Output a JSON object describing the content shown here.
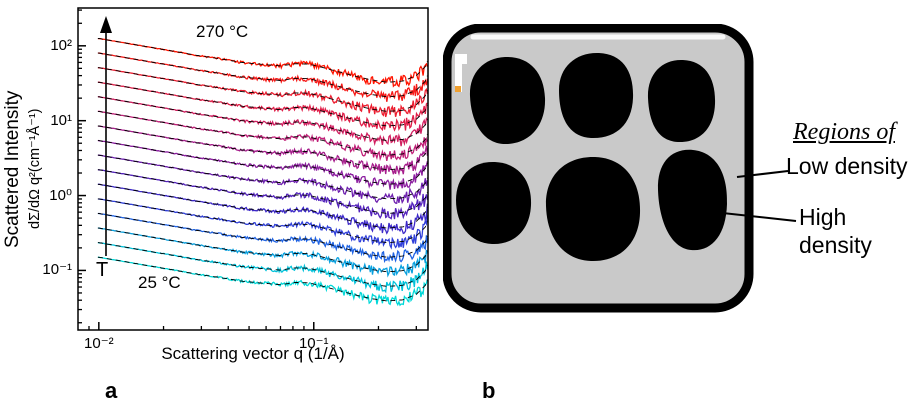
{
  "figure": {
    "panel_a_label": "a",
    "panel_b_label": "b"
  },
  "chart_data": {
    "type": "line",
    "title": "",
    "xlabel": "Scattering vector q (1/Å)",
    "ylabel_line1": "Scattered Intensity",
    "ylabel_line2": "dΣ/dΩ q²(cm⁻¹Å⁻¹)",
    "xscale": "log",
    "yscale": "log",
    "xlim": [
      0.008,
      0.34
    ],
    "ylim": [
      0.016,
      320
    ],
    "grid": false,
    "x_ticks": [
      {
        "value": 0.01,
        "label": "10⁻²"
      },
      {
        "value": 0.1,
        "label": "10⁻¹"
      }
    ],
    "y_ticks": [
      {
        "value": 0.1,
        "label": "10⁻¹"
      },
      {
        "value": 1,
        "label": "10⁰"
      },
      {
        "value": 10,
        "label": "10¹"
      },
      {
        "value": 100,
        "label": "10²"
      }
    ],
    "annotations": {
      "temp_top": "270 °C",
      "temp_bottom": "25 °C",
      "arrow_label": "T"
    },
    "series": {
      "count": 16,
      "temperature_range_c": [
        25,
        270
      ],
      "base_intensity_at_q_0_01": 0.15,
      "step_ratio": 1.566,
      "color_stops": [
        "#00d8d8",
        "#00b4dc",
        "#2850e6",
        "#3c28c8",
        "#6420b4",
        "#961e9b",
        "#c02078",
        "#dc1e50",
        "#f01e28",
        "#ff1400"
      ],
      "fit_overlay": "dashed-black"
    },
    "curve_shape": {
      "q": [
        0.01,
        0.013,
        0.017,
        0.022,
        0.028,
        0.036,
        0.046,
        0.058,
        0.07,
        0.082,
        0.095,
        0.11,
        0.13,
        0.155,
        0.185,
        0.22,
        0.26,
        0.3,
        0.33,
        0.34
      ],
      "relative_intensity": [
        1.0,
        0.88,
        0.77,
        0.68,
        0.6,
        0.54,
        0.48,
        0.45,
        0.43,
        0.46,
        0.455,
        0.41,
        0.36,
        0.315,
        0.28,
        0.26,
        0.27,
        0.32,
        0.42,
        0.52
      ]
    },
    "noise": {
      "min_frac": 0.004,
      "max_frac": 0.22
    }
  },
  "panel_b": {
    "regions_heading": "Regions of",
    "label_low": "Low density",
    "label_high_line1": "High",
    "label_high_line2": "density",
    "colors": {
      "background": "#c9c9c9",
      "border": "#000000",
      "blob": "#000000",
      "top_highlight": "#f8f8f8",
      "marker_white": "#ffffff",
      "marker_orange": "#f0a030"
    }
  }
}
